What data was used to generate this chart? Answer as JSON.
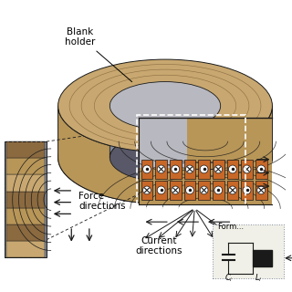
{
  "bg_color": "#ffffff",
  "tan_top": "#C8A870",
  "tan_side": "#B89658",
  "tan_dark": "#8B6A40",
  "tan_inner": "#A07848",
  "gray_top": "#B8B8C0",
  "gray_side": "#808898",
  "gray_dark": "#585868",
  "coil_orange": "#C86828",
  "coil_light": "#D88848",
  "dark_line": "#1a1a1a",
  "med_line": "#404040",
  "dashed_line": "#555555",
  "white": "#ffffff",
  "label_blank": "Blank\nholder",
  "label_force": "Force\ndirections",
  "label_current": "Current\ndirections",
  "label_form": "Form",
  "label_C": "C",
  "label_L": "L",
  "fs_label": 7.5,
  "fs_small": 6.0
}
